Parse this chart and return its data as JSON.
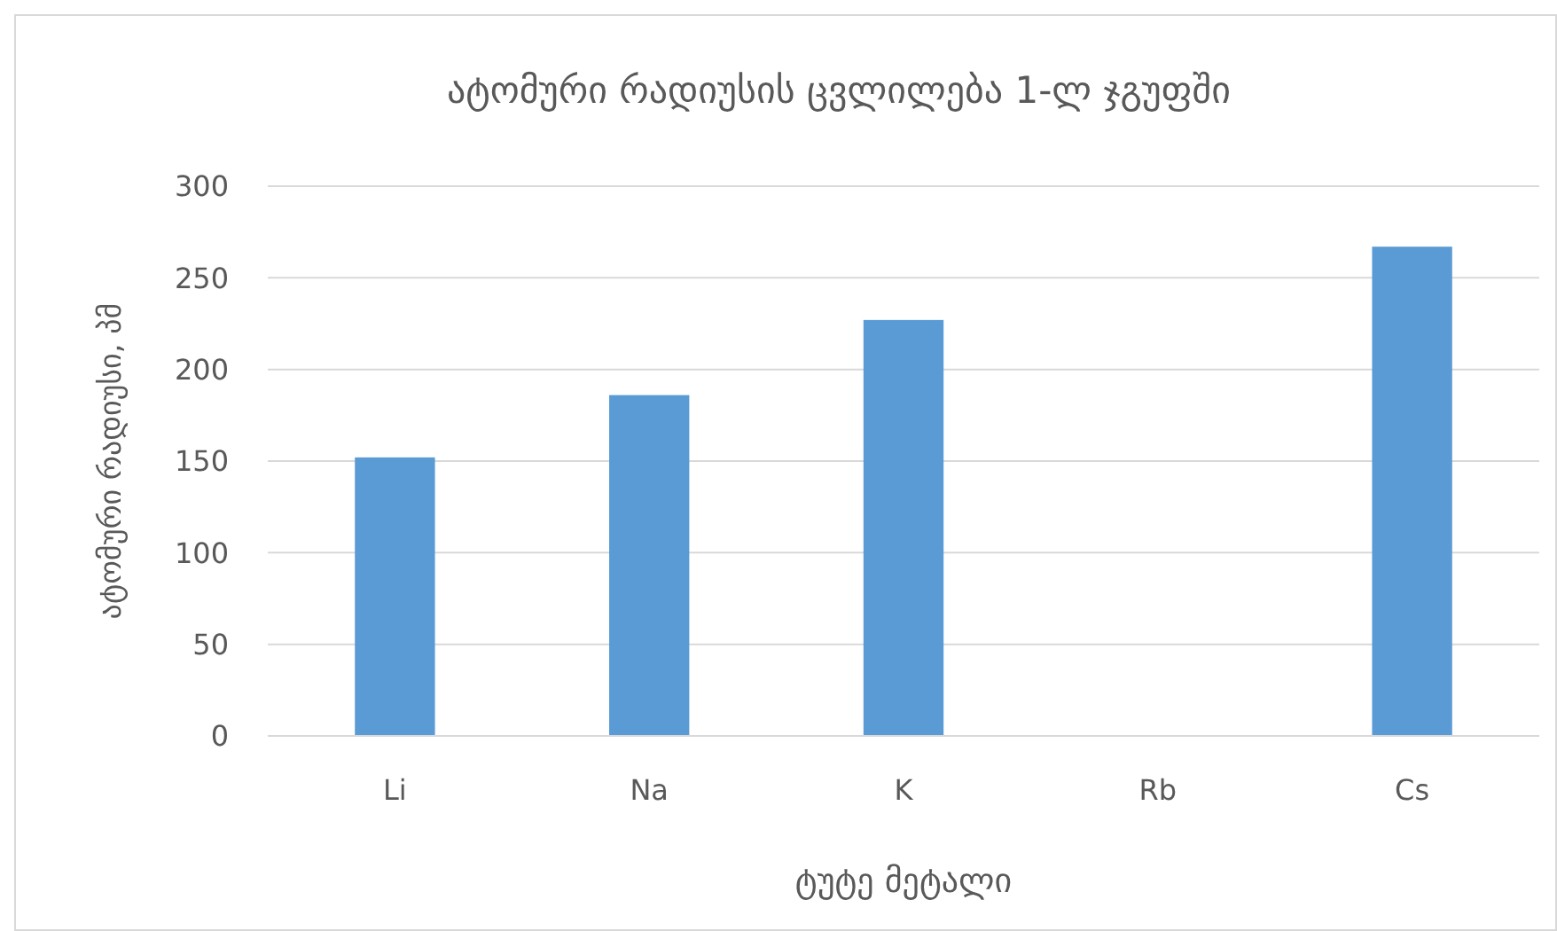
{
  "chart_data": {
    "type": "bar",
    "title": "ატომური რადიუსის ცვლილება 1-ლ ჯგუფში",
    "xlabel": "ტუტე მეტალი",
    "ylabel": "ატომური რადიუსი, პმ",
    "categories": [
      "Li",
      "Na",
      "K",
      "Rb",
      "Cs"
    ],
    "values": [
      152,
      186,
      227,
      null,
      267
    ],
    "color": "#5b9bd5",
    "ylim": [
      0,
      300
    ],
    "yticks": [
      0,
      50,
      100,
      150,
      200,
      250,
      300
    ],
    "grid": "y"
  }
}
